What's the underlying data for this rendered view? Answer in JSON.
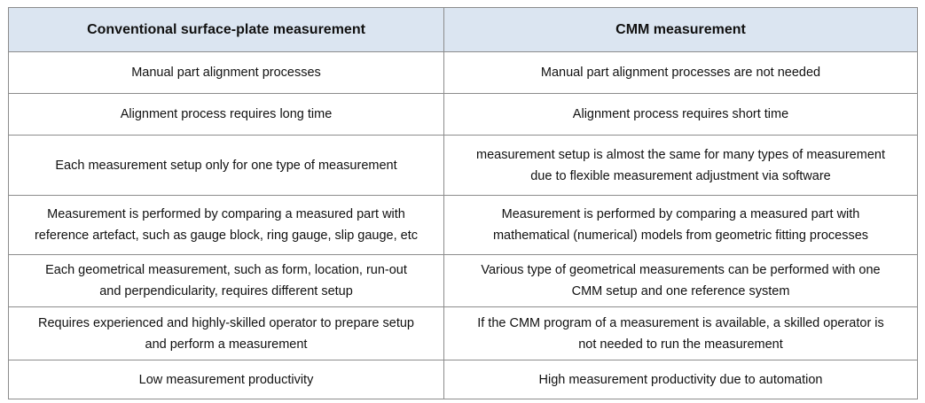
{
  "table": {
    "header": [
      "Conventional surface-plate measurement",
      "CMM measurement"
    ],
    "rows": [
      [
        [
          "Manual part alignment processes"
        ],
        [
          "Manual part alignment processes are not needed"
        ]
      ],
      [
        [
          "Alignment process requires long time"
        ],
        [
          "Alignment process requires short time"
        ]
      ],
      [
        [
          "Each measurement setup only for one type of measurement"
        ],
        [
          "measurement setup is almost the same for many types of measurement",
          "due to flexible measurement adjustment via software"
        ]
      ],
      [
        [
          "Measurement is performed by comparing a measured part with",
          "reference artefact, such as gauge block, ring gauge, slip gauge, etc"
        ],
        [
          "Measurement is performed by comparing a measured part with",
          "mathematical (numerical) models from geometric fitting processes"
        ]
      ],
      [
        [
          "Each geometrical measurement, such as form, location, run-out",
          "and perpendicularity, requires different setup"
        ],
        [
          "Various type of geometrical measurements can be performed with one",
          "CMM setup and one reference system"
        ]
      ],
      [
        [
          "Requires experienced and highly-skilled operator to prepare setup",
          "and perform a measurement"
        ],
        [
          "If the CMM program of a measurement is available, a skilled operator is",
          "not needed to run the measurement"
        ]
      ],
      [
        [
          "Low measurement productivity"
        ],
        [
          "High measurement productivity due to automation"
        ]
      ]
    ]
  }
}
